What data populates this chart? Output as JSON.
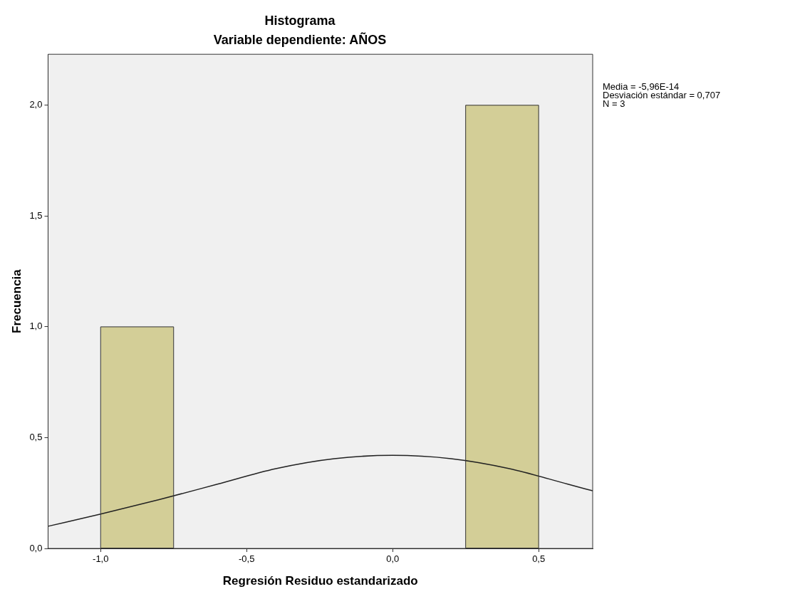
{
  "chart_data": {
    "type": "histogram",
    "title": "Histograma",
    "subtitle": "Variable dependiente: AÑOS",
    "xlabel": "Regresión Residuo estandarizado",
    "ylabel": "Frecuencia",
    "bins": [
      -1.0,
      -0.75,
      -0.5,
      -0.25,
      0.0,
      0.25,
      0.5
    ],
    "values": [
      1,
      0,
      0,
      0,
      0,
      2
    ],
    "color": "#d3ce97",
    "series": [
      {
        "type": "line",
        "color": "#222222",
        "x": [
          -1.18,
          -1.0,
          -0.8,
          -0.6,
          -0.4,
          -0.2,
          0.0,
          0.2,
          0.4,
          0.6,
          0.685
        ],
        "values": [
          0.1,
          0.155,
          0.22,
          0.29,
          0.36,
          0.405,
          0.42,
          0.405,
          0.36,
          0.29,
          0.26
        ]
      }
    ],
    "xlim": [
      -1.18,
      0.685
    ],
    "xticks": [
      {
        "value": -1.0,
        "label": "-1,0"
      },
      {
        "value": -0.5,
        "label": "-0,5"
      },
      {
        "value": 0.0,
        "label": "0,0"
      },
      {
        "value": 0.5,
        "label": "0,5"
      }
    ],
    "ylim": [
      0,
      2.23
    ],
    "yticks": [
      {
        "value": 0,
        "label": "0,0"
      },
      {
        "value": 0.5,
        "label": "0,5"
      },
      {
        "value": 1.0,
        "label": "1,0"
      },
      {
        "value": 1.5,
        "label": "1,5"
      },
      {
        "value": 2.0,
        "label": "2,0"
      }
    ],
    "annotations": [
      "Media = -5,96E-14",
      "Desviación estándar = 0,707",
      "N = 3"
    ],
    "grid": false,
    "legend": false,
    "marker": "none"
  }
}
